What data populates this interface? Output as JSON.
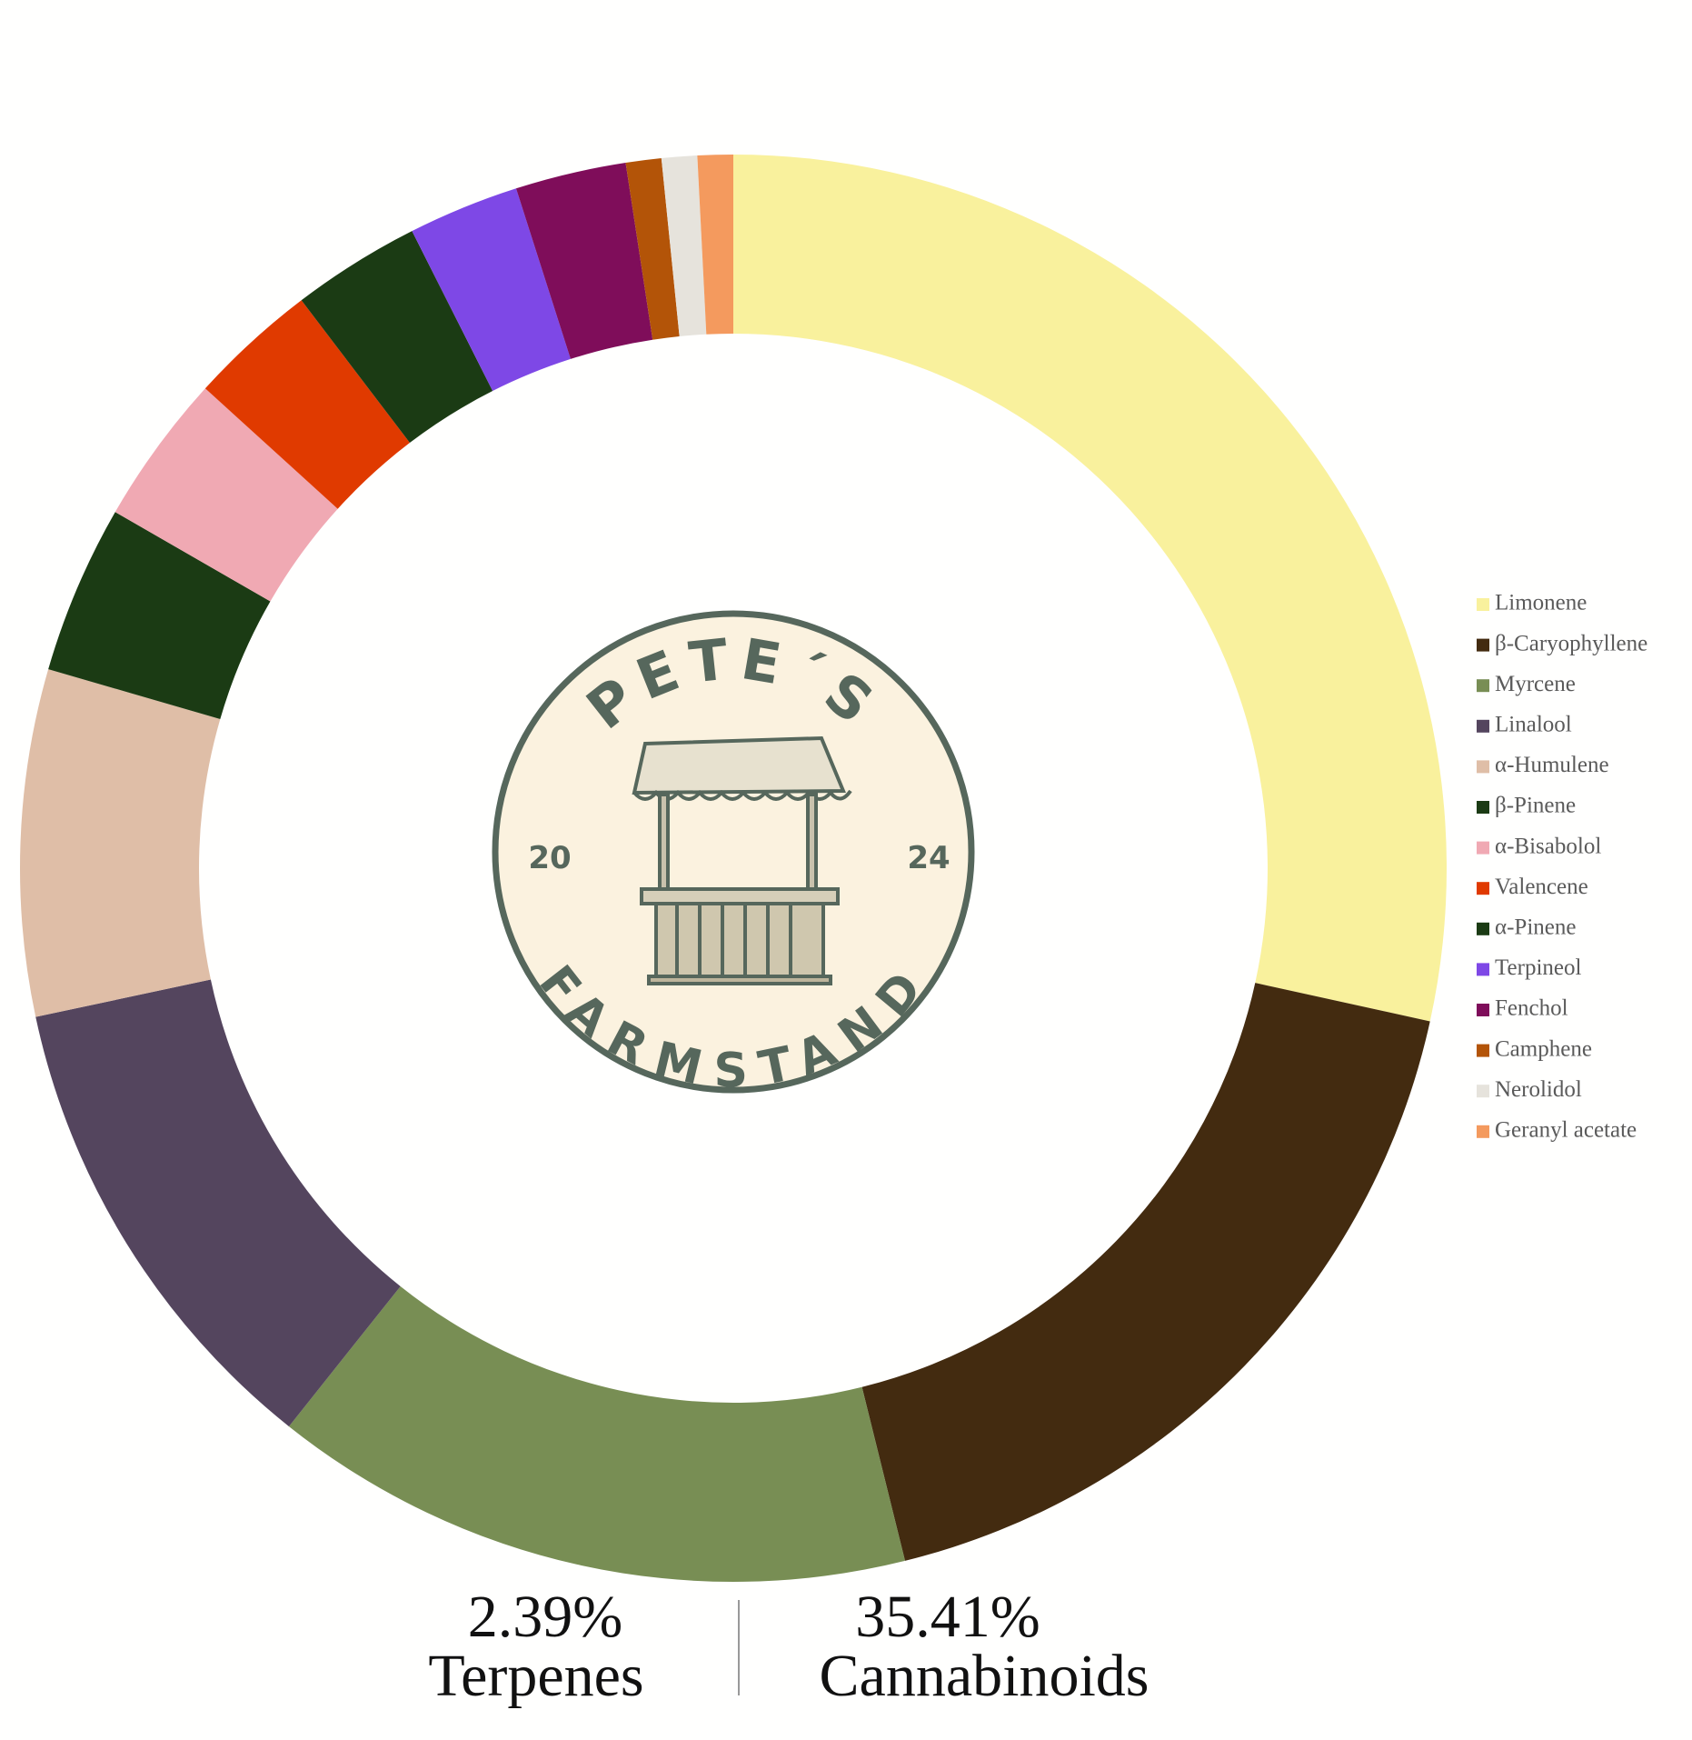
{
  "chart_data": {
    "type": "pie",
    "categories": [
      "Limonene",
      "β-Caryophyllene",
      "Myrcene",
      "Linalool",
      "α-Humulene",
      "β-Pinene",
      "α-Bisabolol",
      "Valencene",
      "α-Pinene",
      "Terpineol",
      "Fenchol",
      "Camphene",
      "Nerolidol",
      "Geranyl acetate"
    ],
    "values": [
      28.3,
      17.6,
      14.5,
      10.9,
      7.8,
      3.8,
      3.4,
      2.9,
      2.9,
      2.5,
      2.5,
      0.8,
      0.8,
      0.8
    ],
    "colors": [
      "#f9f19d",
      "#432b10",
      "#788e54",
      "#54455e",
      "#dfbea7",
      "#1b3b14",
      "#f0a9b3",
      "#e03a00",
      "#1b3b14",
      "#7e48e6",
      "#7f0d5a",
      "#b35408",
      "#e6e3dc",
      "#f49a5e"
    ],
    "legend": "right"
  },
  "logo": {
    "top": "PETE´S",
    "left": "20",
    "right": "24",
    "bottom": "FARMSTAND"
  },
  "summary": [
    {
      "value": "2.39%",
      "label": "Terpenes"
    },
    {
      "value": "35.41%",
      "label": "Cannabinoids"
    }
  ]
}
